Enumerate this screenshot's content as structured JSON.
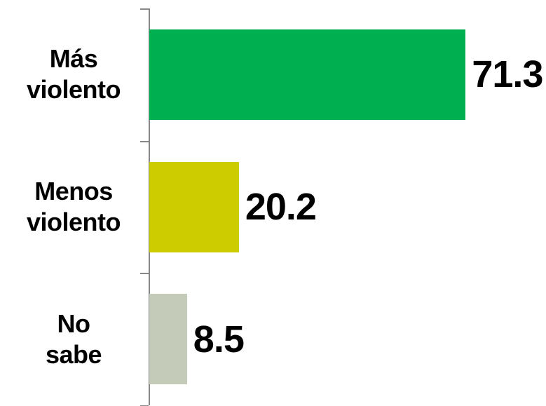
{
  "chart_data": {
    "type": "bar",
    "orientation": "horizontal",
    "categories": [
      "Más\nviolento",
      "Menos\nviolento",
      "No\nsabe"
    ],
    "values": [
      71.3,
      20.2,
      8.5
    ],
    "colors": [
      "#00b050",
      "#cccc00",
      "#c4cbb8"
    ]
  }
}
